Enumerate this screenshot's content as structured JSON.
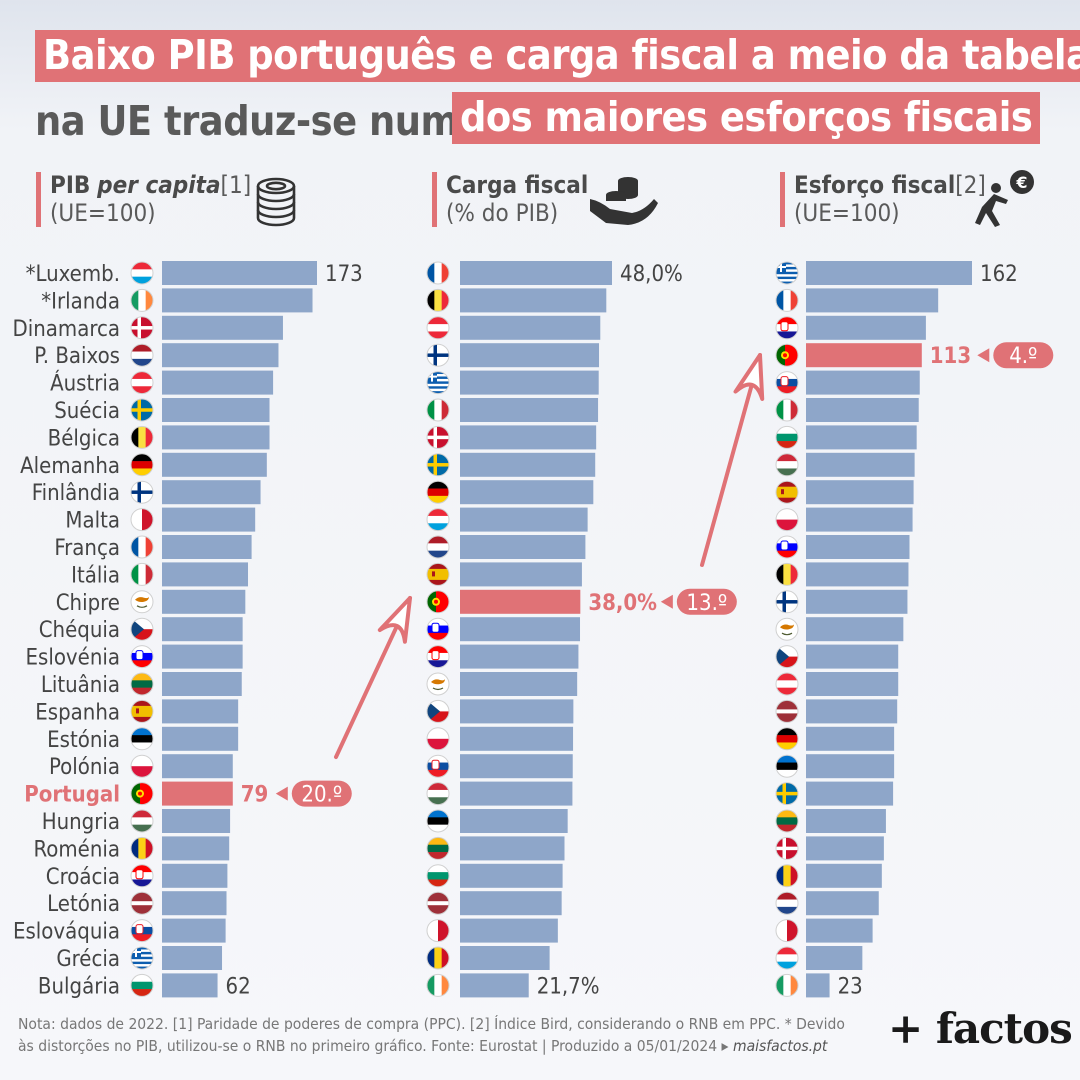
{
  "title": {
    "line1": "Baixo PIB português e carga fiscal a meio da tabela",
    "line2_plain": "na UE traduz-se num",
    "line2_highlight": "dos maiores esforços fiscais"
  },
  "headers": {
    "pib": {
      "bold": "PIB",
      "italic": "per capita",
      "ref": "[1]",
      "unit": "(UE=100)"
    },
    "carga": {
      "bold": "Carga fiscal",
      "unit": "(% do PIB)"
    },
    "esforco": {
      "bold": "Esforço fiscal",
      "ref": "[2]",
      "unit": "(UE=100)"
    }
  },
  "colors": {
    "bar": "#8ea6c9",
    "highlight": "#e07276",
    "text": "#444444"
  },
  "icons": [
    "coins-stack-icon",
    "hand-coins-icon",
    "person-pushing-euro-ball-icon"
  ],
  "chart_data": [
    {
      "type": "bar",
      "orientation": "horizontal",
      "title": "PIB per capita[1] (UE=100)",
      "categories": [
        "*Luxemb.",
        "*Irlanda",
        "Dinamarca",
        "P. Baixos",
        "Áustria",
        "Suécia",
        "Bélgica",
        "Alemanha",
        "Finlândia",
        "Malta",
        "França",
        "Itália",
        "Chipre",
        "Chéquia",
        "Eslovénia",
        "Lituânia",
        "Espanha",
        "Estónia",
        "Polónia",
        "Portugal",
        "Hungria",
        "Roménia",
        "Croácia",
        "Letónia",
        "Eslováquia",
        "Grécia",
        "Bulgária"
      ],
      "flags": [
        "LU",
        "IE",
        "DK",
        "NL",
        "AT",
        "SE",
        "BE",
        "DE",
        "FI",
        "MT",
        "FR",
        "IT",
        "CY",
        "CZ",
        "SI",
        "LT",
        "ES",
        "EE",
        "PL",
        "PT",
        "HU",
        "RO",
        "HR",
        "LV",
        "SK",
        "GR",
        "BG"
      ],
      "values": [
        173,
        168,
        135,
        130,
        124,
        120,
        120,
        117,
        110,
        104,
        100,
        96,
        93,
        90,
        90,
        89,
        85,
        85,
        79,
        79,
        76,
        75,
        73,
        72,
        71,
        67,
        62
      ],
      "value_labels": {
        "first": "173",
        "last": "62",
        "highlight": "79"
      },
      "highlight_index": 19,
      "rank_label": "20.º"
    },
    {
      "type": "bar",
      "orientation": "horizontal",
      "title": "Carga fiscal (% do PIB)",
      "flags": [
        "FR",
        "BE",
        "AT",
        "FI",
        "GR",
        "IT",
        "DK",
        "SE",
        "DE",
        "LU",
        "NL",
        "ES",
        "PT",
        "SI",
        "HR",
        "CY",
        "CZ",
        "PL",
        "SK",
        "HU",
        "EE",
        "LT",
        "BG",
        "LV",
        "MT",
        "RO",
        "IE"
      ],
      "values": [
        48.0,
        46.2,
        44.3,
        43.9,
        43.8,
        43.6,
        43.0,
        42.7,
        42.1,
        40.3,
        39.6,
        38.5,
        38.0,
        37.9,
        37.4,
        37.0,
        35.8,
        35.7,
        35.6,
        35.5,
        34.0,
        33.0,
        32.4,
        32.1,
        30.9,
        28.3,
        21.7
      ],
      "value_labels": {
        "first": "48,0%",
        "last": "21,7%",
        "highlight": "38,0%"
      },
      "highlight_index": 12,
      "rank_label": "13.º"
    },
    {
      "type": "bar",
      "orientation": "horizontal",
      "title": "Esforço fiscal[2] (UE=100)",
      "flags": [
        "GR",
        "FR",
        "HR",
        "PT",
        "SK",
        "IT",
        "BG",
        "HU",
        "ES",
        "PL",
        "SI",
        "BE",
        "FI",
        "CY",
        "CZ",
        "AT",
        "LV",
        "DE",
        "EE",
        "SE",
        "LT",
        "DK",
        "RO",
        "NL",
        "MT",
        "LU",
        "IE"
      ],
      "values": [
        162,
        129,
        117,
        113,
        111,
        110,
        108,
        106,
        105,
        104,
        101,
        100,
        99,
        95,
        90,
        90,
        89,
        86,
        86,
        85,
        78,
        76,
        74,
        71,
        65,
        55,
        23
      ],
      "value_labels": {
        "first": "162",
        "last": "23",
        "highlight": "113"
      },
      "highlight_index": 3,
      "rank_label": "4.º"
    }
  ],
  "footer": {
    "note": "Nota: dados de 2022. [1] Paridade de poderes de compra (PPC). [2] Índice Bird, considerando o RNB em PPC. * Devido às distorções no PIB, utilizou-se o RNB no primeiro gráfico. Fonte: Eurostat | Produzido a 05/01/2024 ▸ ",
    "site": "maisfactos.pt"
  },
  "logo": "+ factos"
}
